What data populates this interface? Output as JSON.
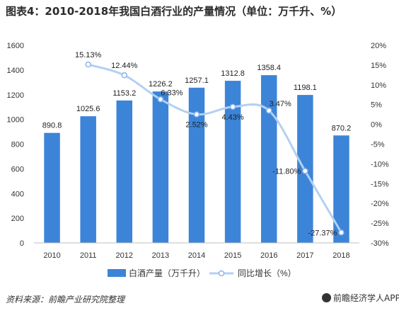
{
  "chart_data": {
    "title": "图表4：2010-2018年我国白酒行业的产量情况（单位：万千升、%）",
    "type": "bar+line",
    "categories": [
      "2010",
      "2011",
      "2012",
      "2013",
      "2014",
      "2015",
      "2016",
      "2017",
      "2018"
    ],
    "series": [
      {
        "name": "白酒产量（万千升）",
        "type": "bar",
        "axis": "left",
        "color": "#3c84d8",
        "values": [
          890.8,
          1025.6,
          1153.2,
          1226.2,
          1257.1,
          1312.8,
          1358.4,
          1198.1,
          870.2
        ],
        "labels": [
          "890.8",
          "1025.6",
          "1153.2",
          "1226.2",
          "1257.1",
          "1312.8",
          "1358.4",
          "1198.1",
          "870.2"
        ]
      },
      {
        "name": "同比增长（%）",
        "type": "line",
        "axis": "right",
        "color": "#b3d0f2",
        "values": [
          null,
          15.13,
          12.44,
          6.33,
          2.52,
          4.43,
          3.47,
          -11.8,
          -27.37
        ],
        "labels": [
          "",
          "15.13%",
          "12.44%",
          "6.33%",
          "2.52%",
          "4.43%",
          "3.47%",
          "-11.80%",
          "-27.37%"
        ]
      }
    ],
    "y_left": {
      "min": 0,
      "max": 1600,
      "step": 200,
      "ticks": [
        "0",
        "200",
        "400",
        "600",
        "800",
        "1000",
        "1200",
        "1400",
        "1600"
      ]
    },
    "y_right": {
      "min": -30,
      "max": 20,
      "step": 5,
      "ticks": [
        "-30%",
        "-25%",
        "-20%",
        "-15%",
        "-10%",
        "-5%",
        "0%",
        "5%",
        "10%",
        "15%",
        "20%"
      ]
    },
    "grid": false,
    "legend_position": "bottom"
  },
  "footer": {
    "source": "资料来源：前瞻产业研究院整理",
    "brand": "前瞻经济学人APP"
  }
}
